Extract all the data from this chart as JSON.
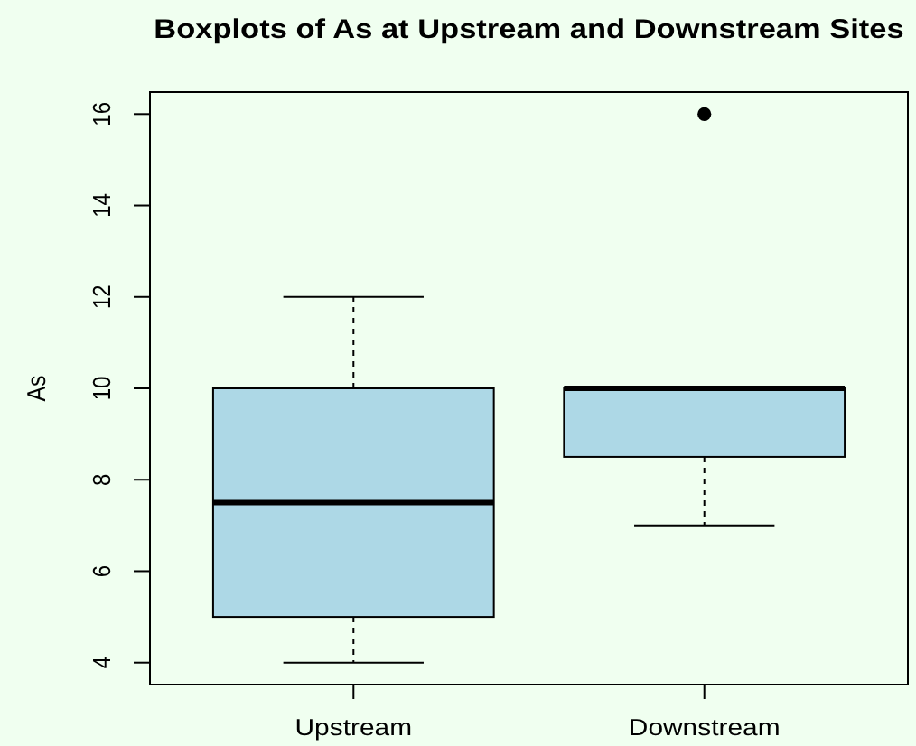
{
  "chart_data": {
    "type": "box",
    "title": "Boxplots of As at Upstream and Downstream Sites",
    "ylabel": "As",
    "categories": [
      "Upstream",
      "Downstream"
    ],
    "boxes": [
      {
        "low": 4,
        "q1": 5,
        "median": 7.5,
        "q3": 10,
        "high": 12
      },
      {
        "low": 7,
        "q1": 8.5,
        "median": 10,
        "q3": 10,
        "high": 10,
        "outliers": [
          16
        ]
      }
    ],
    "color": "#add8e6",
    "ylim": [
      3.52,
      16.48
    ],
    "yticks": [
      4,
      6,
      8,
      10,
      12,
      14,
      16
    ]
  }
}
